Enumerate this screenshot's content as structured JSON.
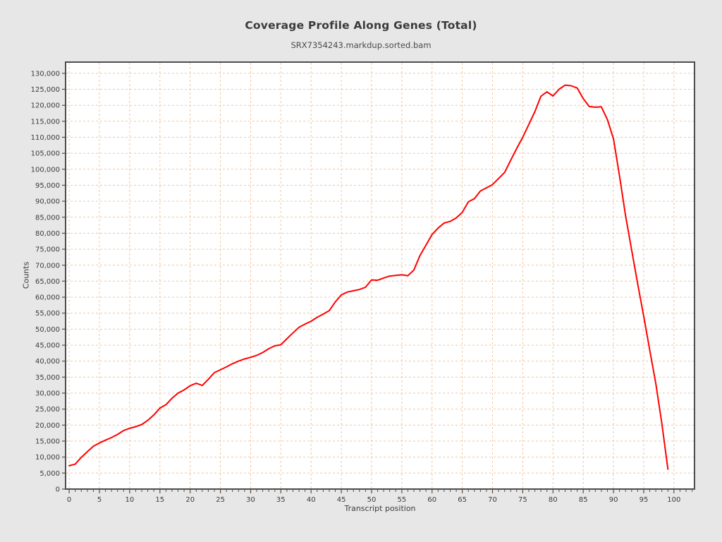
{
  "page": {
    "background": "#e7e7e7",
    "plot_background": "#ffffff",
    "frame_color": "#4d4d4d",
    "tick_color": "#4d4d4d",
    "text_color": "#3c3c3c"
  },
  "chart_data": {
    "type": "line",
    "title": "Coverage Profile Along Genes (Total)",
    "subtitle": "SRX7354243.markdup.sorted.bam",
    "xlabel": "Transcript position",
    "ylabel": "Counts",
    "grid": true,
    "grid_color": "#f2c6a0",
    "legend": "none",
    "xlim": [
      -0.6,
      103.4
    ],
    "ylim": [
      0,
      133500
    ],
    "x_ticks": [
      0,
      5,
      10,
      15,
      20,
      25,
      30,
      35,
      40,
      45,
      50,
      55,
      60,
      65,
      70,
      75,
      80,
      85,
      90,
      95,
      100
    ],
    "x_minor_tick_step": 1,
    "x_minor_tick_max": 103,
    "y_ticks": [
      0,
      5000,
      10000,
      15000,
      20000,
      25000,
      30000,
      35000,
      40000,
      45000,
      50000,
      55000,
      60000,
      65000,
      70000,
      75000,
      80000,
      85000,
      90000,
      95000,
      100000,
      105000,
      110000,
      115000,
      120000,
      125000,
      130000
    ],
    "x": [
      0,
      1,
      2,
      3,
      4,
      5,
      6,
      7,
      8,
      9,
      10,
      11,
      12,
      13,
      14,
      15,
      16,
      17,
      18,
      19,
      20,
      21,
      22,
      23,
      24,
      25,
      26,
      27,
      28,
      29,
      30,
      31,
      32,
      33,
      34,
      35,
      36,
      37,
      38,
      39,
      40,
      41,
      42,
      43,
      44,
      45,
      46,
      47,
      48,
      49,
      50,
      51,
      52,
      53,
      54,
      55,
      56,
      57,
      58,
      59,
      60,
      61,
      62,
      63,
      64,
      65,
      66,
      67,
      68,
      69,
      70,
      71,
      72,
      73,
      74,
      75,
      76,
      77,
      78,
      79,
      80,
      81,
      82,
      83,
      84,
      85,
      86,
      87,
      88,
      89,
      90,
      91,
      92,
      93,
      94,
      95,
      96,
      97,
      98,
      99
    ],
    "series": [
      {
        "name": "SRX7354243.markdup.sorted.bam",
        "color": "#ff0000",
        "values": [
          7300,
          7800,
          9900,
          11700,
          13400,
          14400,
          15300,
          16100,
          17100,
          18300,
          19000,
          19500,
          20200,
          21500,
          23200,
          25300,
          26400,
          28400,
          30000,
          31000,
          32300,
          33100,
          32400,
          34300,
          36400,
          37300,
          38200,
          39200,
          40000,
          40700,
          41200,
          41800,
          42700,
          43900,
          44800,
          45100,
          47000,
          48800,
          50600,
          51600,
          52500,
          53700,
          54700,
          55800,
          58500,
          60700,
          61600,
          62000,
          62400,
          63100,
          65400,
          65300,
          66000,
          66600,
          66800,
          67000,
          66700,
          68500,
          73000,
          76300,
          79600,
          81600,
          83200,
          83700,
          84800,
          86500,
          89800,
          90800,
          93200,
          94200,
          95200,
          97100,
          99000,
          102800,
          106500,
          110000,
          114000,
          118000,
          122800,
          124200,
          122900,
          125000,
          126300,
          126100,
          125400,
          122100,
          119600,
          119400,
          119500,
          115500,
          109500,
          98000,
          85500,
          74800,
          64200,
          54000,
          43500,
          33000,
          20500,
          6200
        ]
      }
    ]
  }
}
